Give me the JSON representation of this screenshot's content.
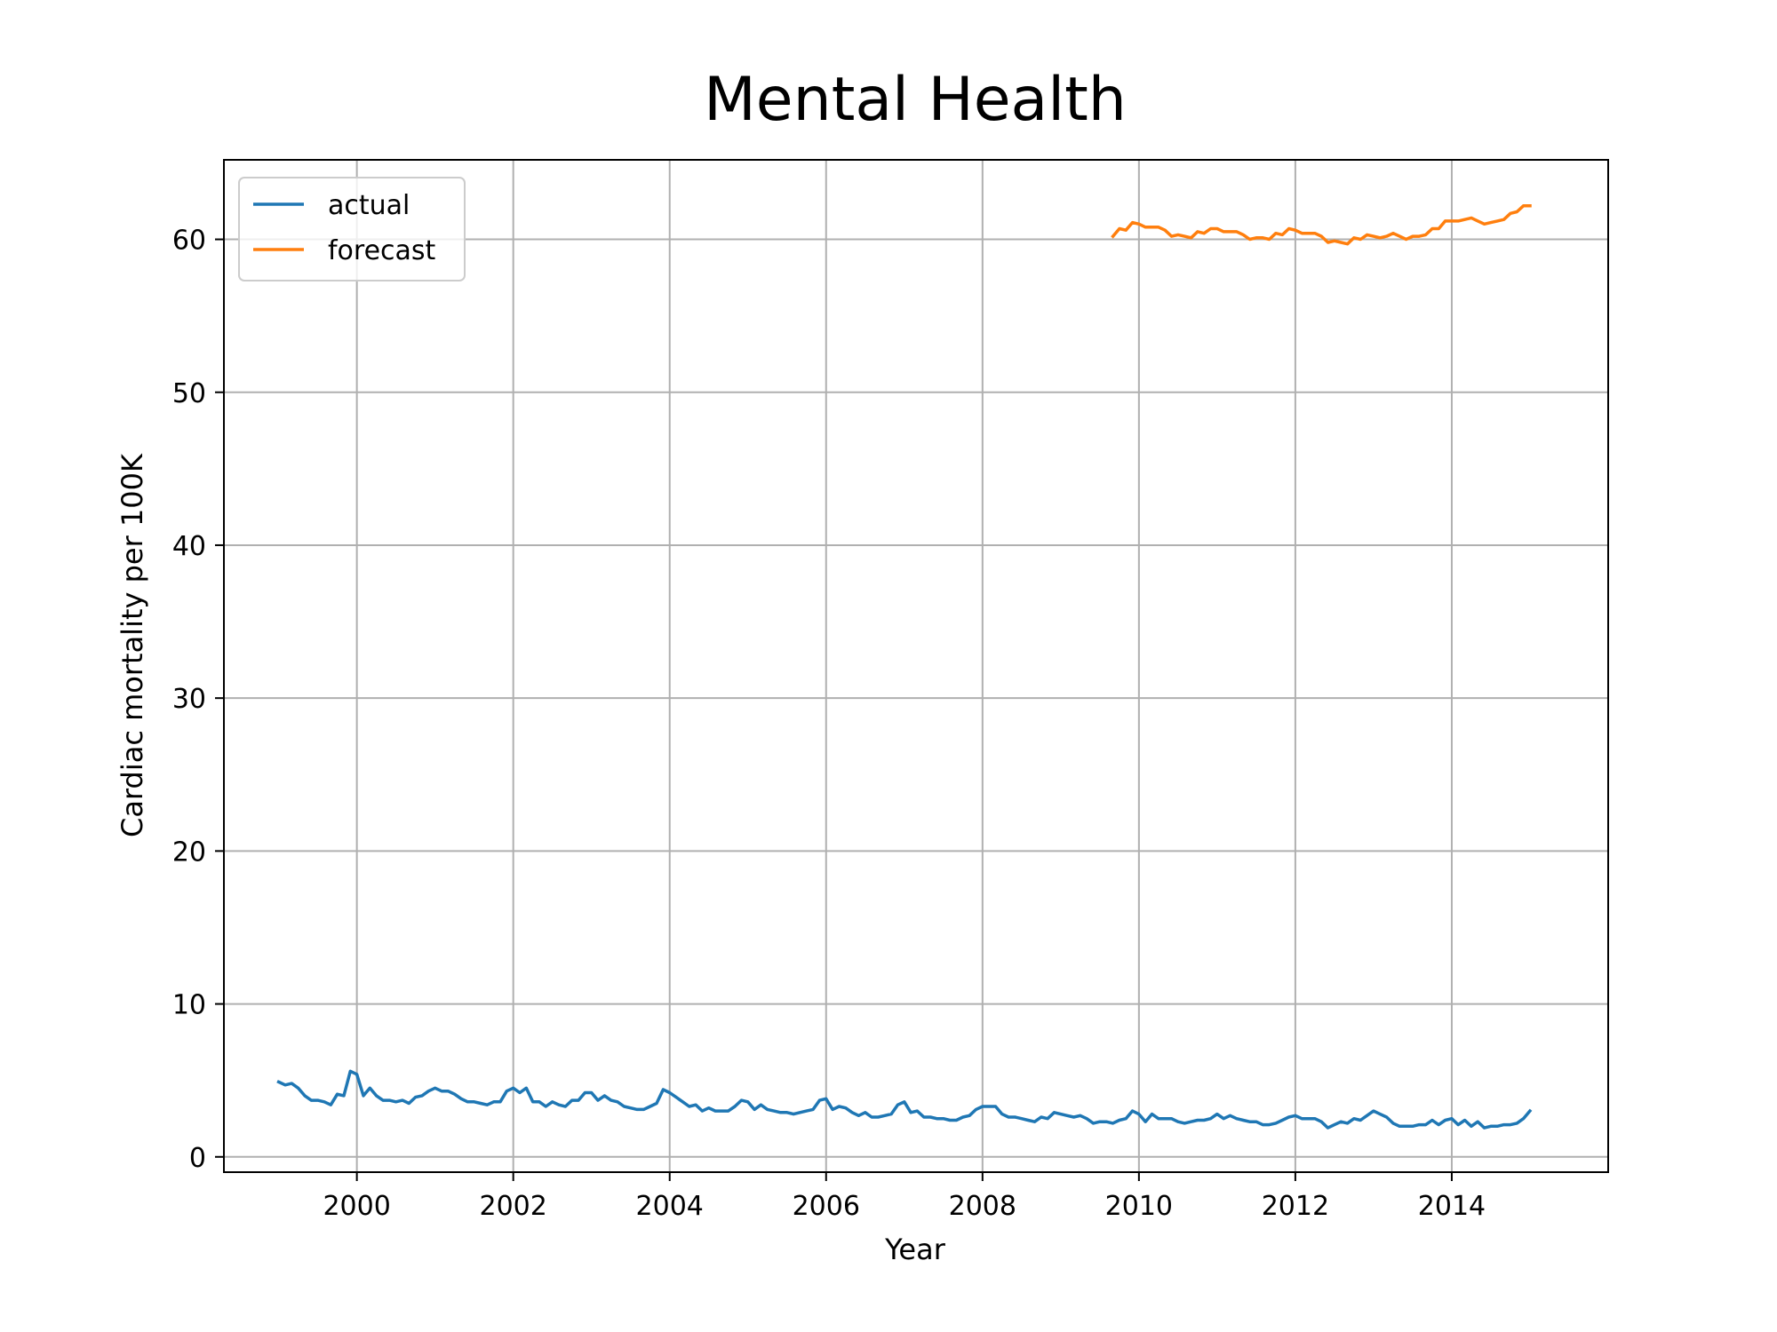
{
  "chart_data": {
    "type": "line",
    "title": "Mental Health",
    "xlabel": "Year",
    "ylabel": "Cardiac mortality per 100K",
    "xlim": [
      1998.3,
      2016.0
    ],
    "ylim": [
      -1.0,
      65.2
    ],
    "x_ticks": [
      2000,
      2002,
      2004,
      2006,
      2008,
      2010,
      2012,
      2014
    ],
    "y_ticks": [
      0,
      10,
      20,
      30,
      40,
      50,
      60
    ],
    "grid": true,
    "legend_position": "top-left",
    "series": [
      {
        "name": "actual",
        "color": "#1f77b4",
        "x_start": 1999.0,
        "x_step": 0.08333,
        "values": [
          4.9,
          4.7,
          4.8,
          4.5,
          4.0,
          3.7,
          3.7,
          3.6,
          3.4,
          4.1,
          4.0,
          5.6,
          5.4,
          4.0,
          4.5,
          4.0,
          3.7,
          3.7,
          3.6,
          3.7,
          3.5,
          3.9,
          4.0,
          4.3,
          4.5,
          4.3,
          4.3,
          4.1,
          3.8,
          3.6,
          3.6,
          3.5,
          3.4,
          3.6,
          3.6,
          4.3,
          4.5,
          4.2,
          4.5,
          3.6,
          3.6,
          3.3,
          3.6,
          3.4,
          3.3,
          3.7,
          3.7,
          4.2,
          4.2,
          3.7,
          4.0,
          3.7,
          3.6,
          3.3,
          3.2,
          3.1,
          3.1,
          3.3,
          3.5,
          4.4,
          4.2,
          3.9,
          3.6,
          3.3,
          3.4,
          3.0,
          3.2,
          3.0,
          3.0,
          3.0,
          3.3,
          3.7,
          3.6,
          3.1,
          3.4,
          3.1,
          3.0,
          2.9,
          2.9,
          2.8,
          2.9,
          3.0,
          3.1,
          3.7,
          3.8,
          3.1,
          3.3,
          3.2,
          2.9,
          2.7,
          2.9,
          2.6,
          2.6,
          2.7,
          2.8,
          3.4,
          3.6,
          2.9,
          3.0,
          2.6,
          2.6,
          2.5,
          2.5,
          2.4,
          2.4,
          2.6,
          2.7,
          3.1,
          3.3,
          3.3,
          3.3,
          2.8,
          2.6,
          2.6,
          2.5,
          2.4,
          2.3,
          2.6,
          2.5,
          2.9,
          2.8,
          2.7,
          2.6,
          2.7,
          2.5,
          2.2,
          2.3,
          2.3,
          2.2,
          2.4,
          2.5,
          3.0,
          2.8,
          2.3,
          2.8,
          2.5,
          2.5,
          2.5,
          2.3,
          2.2,
          2.3,
          2.4,
          2.4,
          2.5,
          2.8,
          2.5,
          2.7,
          2.5,
          2.4,
          2.3,
          2.3,
          2.1,
          2.1,
          2.2,
          2.4,
          2.6,
          2.7,
          2.5,
          2.5,
          2.5,
          2.3,
          1.9,
          2.1,
          2.3,
          2.2,
          2.5,
          2.4,
          2.7,
          3.0,
          2.8,
          2.6,
          2.2,
          2.0,
          2.0,
          2.0,
          2.1,
          2.1,
          2.4,
          2.1,
          2.4,
          2.5,
          2.1,
          2.4,
          2.0,
          2.3,
          1.9,
          2.0,
          2.0,
          2.1,
          2.1,
          2.2,
          2.5,
          3.0
        ]
      },
      {
        "name": "forecast",
        "color": "#ff7f0e",
        "x_start": 2009.667,
        "x_step": 0.08333,
        "values": [
          60.2,
          60.7,
          60.6,
          61.1,
          61.0,
          60.8,
          60.8,
          60.8,
          60.6,
          60.2,
          60.3,
          60.2,
          60.1,
          60.5,
          60.4,
          60.7,
          60.7,
          60.5,
          60.5,
          60.5,
          60.3,
          60.0,
          60.1,
          60.1,
          60.0,
          60.4,
          60.3,
          60.7,
          60.6,
          60.4,
          60.4,
          60.4,
          60.2,
          59.8,
          59.9,
          59.8,
          59.7,
          60.1,
          60.0,
          60.3,
          60.2,
          60.1,
          60.2,
          60.4,
          60.2,
          60.0,
          60.2,
          60.2,
          60.3,
          60.7,
          60.7,
          61.2,
          61.2,
          61.2,
          61.3,
          61.4,
          61.2,
          61.0,
          61.1,
          61.2,
          61.3,
          61.7,
          61.8,
          62.2,
          62.2
        ]
      }
    ]
  }
}
